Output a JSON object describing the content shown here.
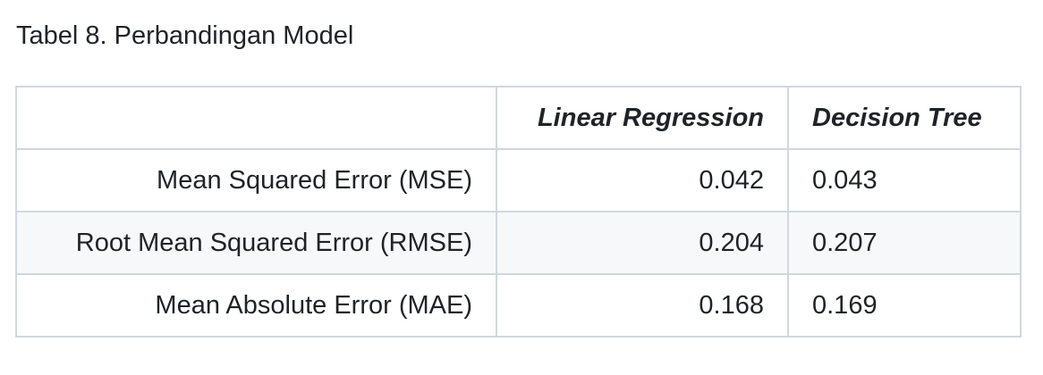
{
  "caption": "Tabel 8. Perbandingan Model",
  "table": {
    "headers": [
      "",
      "Linear Regression",
      "Decision Tree"
    ],
    "rows": [
      {
        "metric": "Mean Squared Error (MSE)",
        "linear_regression": "0.042",
        "decision_tree": "0.043"
      },
      {
        "metric": "Root Mean Squared Error (RMSE)",
        "linear_regression": "0.204",
        "decision_tree": "0.207"
      },
      {
        "metric": "Mean Absolute Error (MAE)",
        "linear_regression": "0.168",
        "decision_tree": "0.169"
      }
    ],
    "colors": {
      "border": "#d0d7de",
      "striped_row": "#f6f8fa",
      "text": "#1f2328"
    }
  }
}
